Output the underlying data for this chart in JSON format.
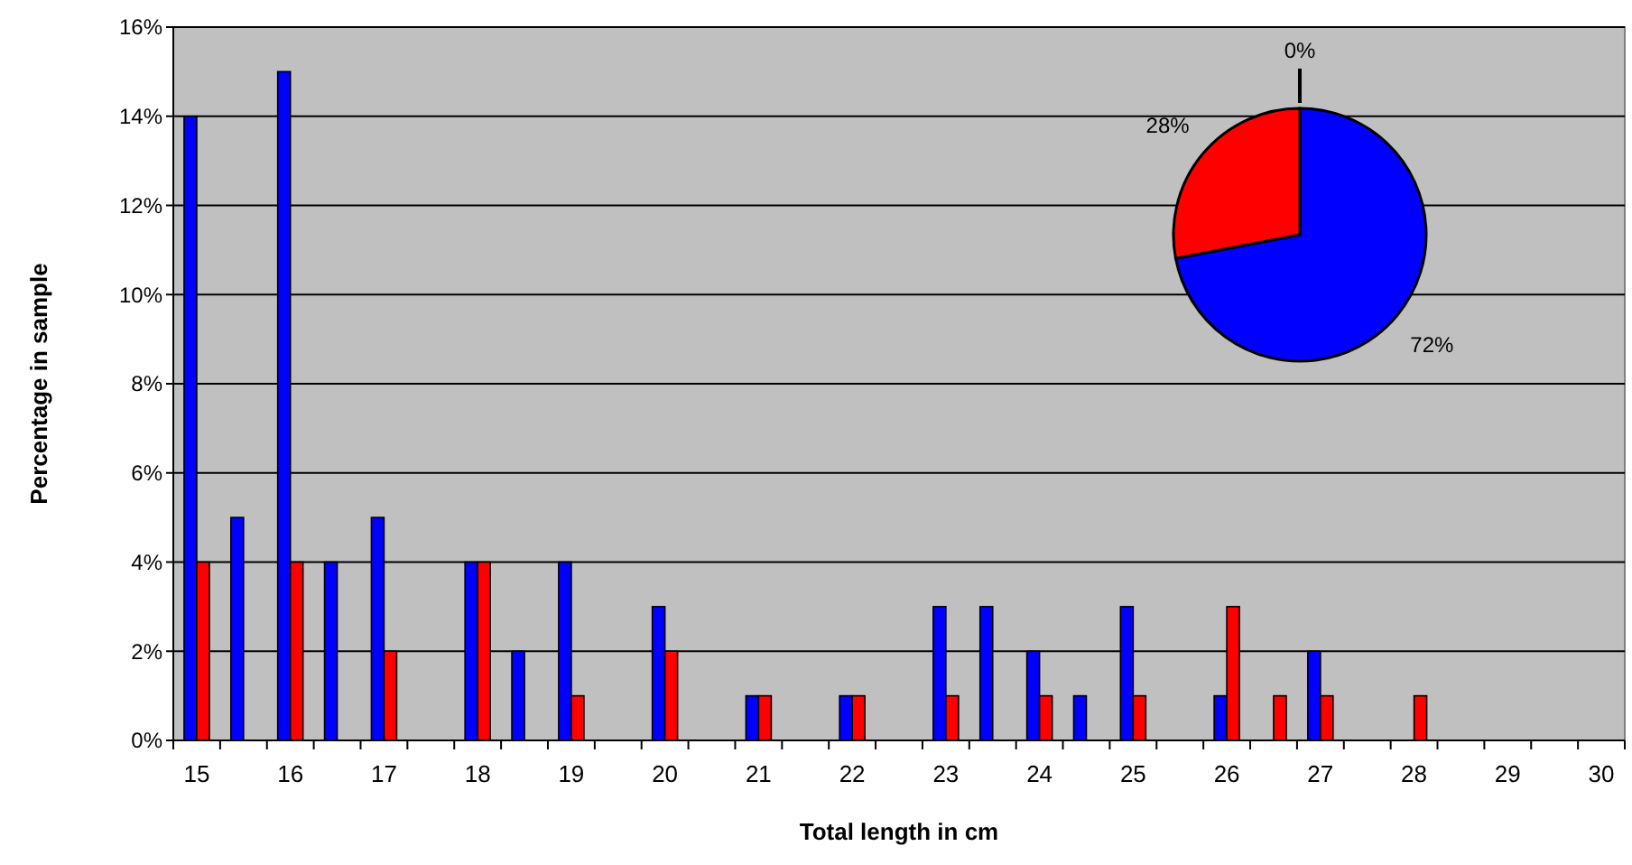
{
  "chart_data": [
    {
      "type": "bar",
      "xlabel": "Total length in cm",
      "ylabel": "Percentage in sample",
      "categories": [
        "15",
        null,
        "16",
        null,
        "17",
        null,
        "18",
        null,
        "19",
        null,
        "20",
        null,
        "21",
        null,
        "22",
        null,
        "23",
        null,
        "24",
        null,
        "25",
        null,
        "26",
        null,
        "27",
        null,
        "28",
        null,
        "29",
        null,
        "30"
      ],
      "series": [
        {
          "color": "#0000ff",
          "values": [
            14,
            5,
            15,
            4,
            5,
            0,
            4,
            2,
            4,
            0,
            3,
            0,
            1,
            0,
            1,
            0,
            3,
            3,
            2,
            1,
            3,
            0,
            1,
            0,
            2,
            0,
            0,
            0,
            0,
            0,
            0
          ]
        },
        {
          "color": "#ff0000",
          "values": [
            4,
            0,
            4,
            0,
            2,
            0,
            4,
            0,
            1,
            0,
            2,
            0,
            1,
            0,
            1,
            0,
            1,
            0,
            1,
            0,
            1,
            0,
            3,
            1,
            1,
            0,
            1,
            0,
            0,
            0,
            0
          ]
        }
      ],
      "ylim": [
        0,
        16
      ],
      "yticks": [
        {
          "value": 0,
          "label": "0%"
        },
        {
          "value": 2,
          "label": "2%"
        },
        {
          "value": 4,
          "label": "4%"
        },
        {
          "value": 6,
          "label": "6%"
        },
        {
          "value": 8,
          "label": "8%"
        },
        {
          "value": 10,
          "label": "10%"
        },
        {
          "value": 12,
          "label": "12%"
        },
        {
          "value": 14,
          "label": "14%"
        },
        {
          "value": 16,
          "label": "16%"
        }
      ],
      "grid": "y",
      "legend": false
    },
    {
      "type": "pie",
      "categories": [
        null,
        null,
        null
      ],
      "values": [
        0,
        72,
        28
      ],
      "colors": [
        "#808080",
        "#0000ff",
        "#ff0000"
      ],
      "value_labels": [
        "0%",
        "72%",
        "28%"
      ]
    }
  ]
}
